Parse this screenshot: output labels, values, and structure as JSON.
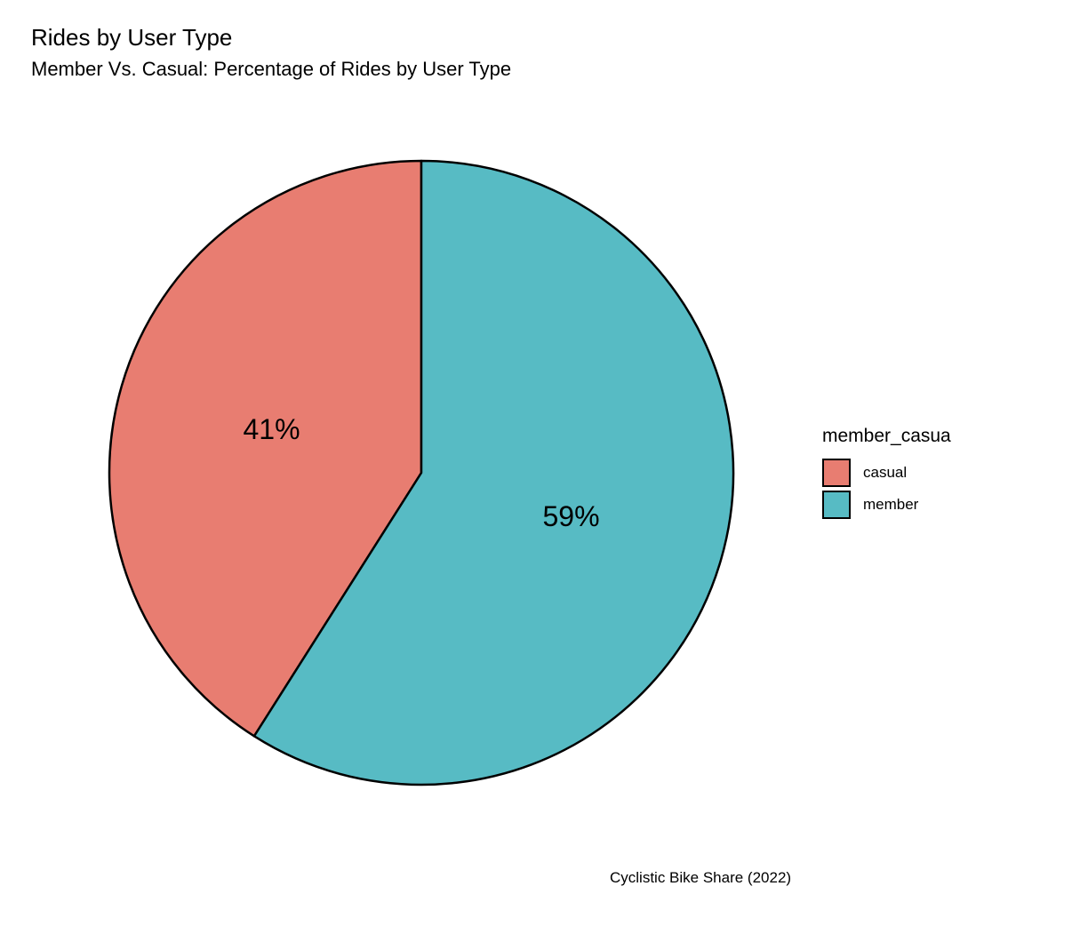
{
  "chart_data": {
    "type": "pie",
    "title": "Rides by User Type",
    "subtitle": "Member Vs. Casual: Percentage of Rides by User Type",
    "caption": "Cyclistic Bike Share (2022)",
    "legend_title": "member_casua",
    "legend_placement": "right",
    "categories": [
      "casual",
      "member"
    ],
    "values": [
      41,
      59
    ],
    "labels": [
      "41%",
      "59%"
    ],
    "colors": [
      "#E87D71",
      "#57BBC4"
    ],
    "outline_color": "#000000"
  }
}
